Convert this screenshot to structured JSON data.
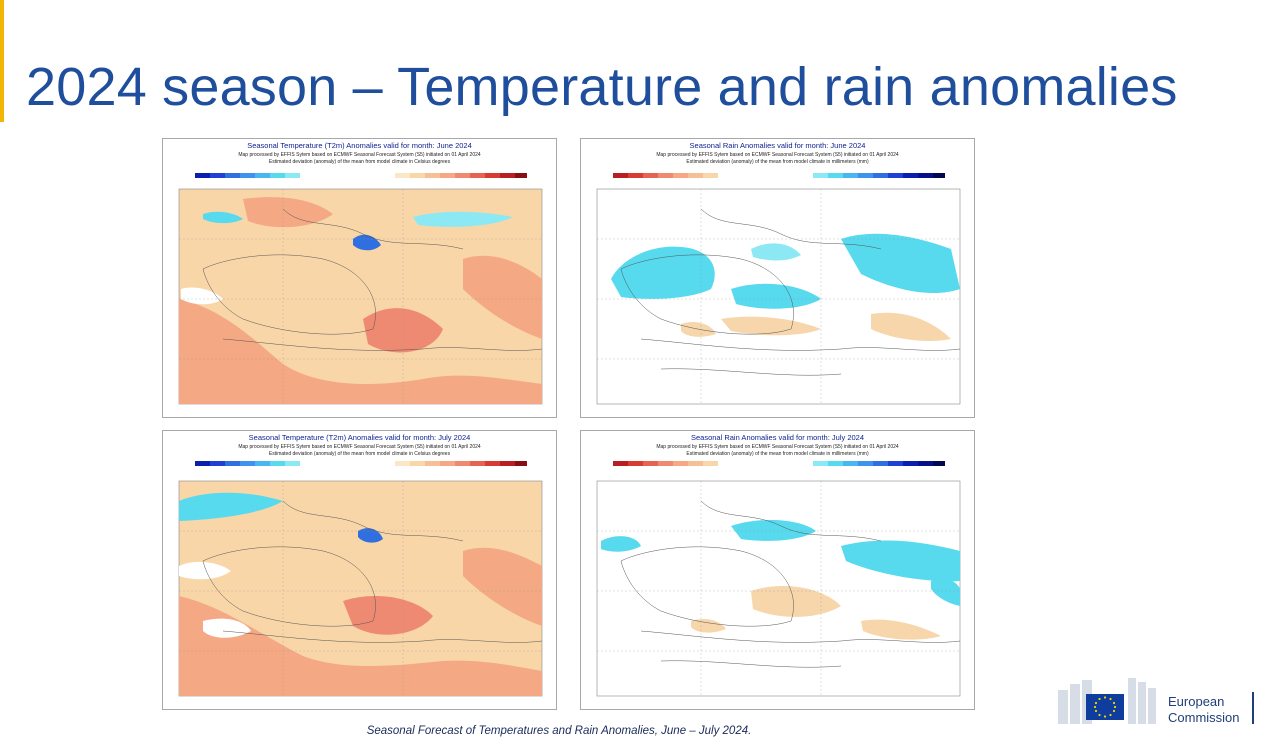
{
  "slide": {
    "title": "2024 season – Temperature and rain anomalies",
    "caption": "Seasonal Forecast of Temperatures and Rain Anomalies, June – July 2024."
  },
  "colors": {
    "title": "#1f4e9c",
    "accent": "#f2b705",
    "warm_light": "#f8d6a8",
    "warm_mid": "#f4a984",
    "warm_strong": "#ef8a72",
    "cool": "#57d9ee",
    "cool_strong": "#2f6fe0",
    "dry": "#f6d6aa"
  },
  "maps": {
    "temp_june": {
      "title": "Seasonal Temperature (T2m) Anomalies valid for month: June 2024",
      "sub1": "Map processed by EFFIS Sytem based on ECMWF Seasonal Forecast System (S5) initiated on 01 April 2024",
      "sub2": "Estimated deviation (anomaly) of the mean from model climate in Celsius degrees"
    },
    "rain_june": {
      "title": "Seasonal Rain Anomalies valid for month: June 2024",
      "sub1": "Map processed by EFFIS Sytem based on ECMWF Seasonal Forecast System (S5) initiated on 01 April 2024",
      "sub2": "Estimated deviation (anomaly) of the mean from model climate in millimeters (mm)"
    },
    "temp_july": {
      "title": "Seasonal Temperature (T2m) Anomalies valid for month: July 2024",
      "sub1": "Map processed by EFFIS Sytem based on ECMWF Seasonal Forecast System (S5) initiated on 01 April 2024",
      "sub2": "Estimated deviation (anomaly) of the mean from model climate in Celsius degrees"
    },
    "rain_july": {
      "title": "Seasonal Rain Anomalies valid for month: July 2024",
      "sub1": "Map processed by EFFIS Sytem based on ECMWF Seasonal Forecast System (S5) initiated on 01 April 2024",
      "sub2": "Estimated deviation (anomaly) of the mean from model climate in millimeters (mm)"
    }
  },
  "logo": {
    "line1": "European",
    "line2": "Commission",
    "icon": "eu-flag-icon"
  }
}
